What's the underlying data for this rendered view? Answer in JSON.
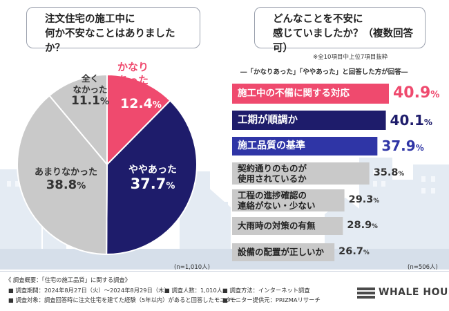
{
  "left_question": [
    "注文住宅の施工中に",
    "何か不安なことはありましたか？"
  ],
  "right_question": [
    "どんなことを不安に",
    "感じていましたか？（複数回答可）"
  ],
  "right_note": "※全10項目中上位7項目抜粋",
  "right_subtitle": "―「かなりあった」「ややあった」と回答した方が回答―",
  "colors": {
    "pink": "#ef4a6e",
    "navy": "#1e1c6b",
    "blue": "#2f35a6",
    "gray": "#c9c9c9"
  },
  "chart_data": [
    {
      "type": "pie",
      "title": "注文住宅の施工中に何か不安なことはありましたか？",
      "n_label": "(n=1,010人)",
      "slices": [
        {
          "label": "かなりあった",
          "value": 12.4,
          "display": "12.4",
          "color": "#ef4a6e"
        },
        {
          "label": "ややあった",
          "value": 37.7,
          "display": "37.7",
          "color": "#1e1c6b"
        },
        {
          "label": "あまりなかった",
          "value": 38.8,
          "display": "38.8",
          "color": "#c9c9c9"
        },
        {
          "label": "全くなかった",
          "value": 11.1,
          "display": "11.1",
          "color": "#c9c9c9"
        }
      ],
      "unit": "%"
    },
    {
      "type": "bar",
      "orientation": "horizontal",
      "title": "どんなことを不安に感じていましたか？（複数回答可）",
      "n_label": "(n=506人)",
      "unit": "%",
      "categories": [
        "施工中の不備に関する対応",
        "工期が順調か",
        "施工品質の基準",
        "契約通りのものが使用されているか",
        "工程の進捗確認の連絡がない・少ない",
        "大雨時の対策の有無",
        "設備の配置が正しいか"
      ],
      "label_lines": [
        [
          "施工中の不備に関する対応"
        ],
        [
          "工期が順調か"
        ],
        [
          "施工品質の基準"
        ],
        [
          "契約通りのものが",
          "使用されているか"
        ],
        [
          "工程の進捗確認の",
          "連絡がない・少ない"
        ],
        [
          "大雨時の対策の有無"
        ],
        [
          "設備の配置が正しいか"
        ]
      ],
      "values": [
        40.9,
        40.1,
        37.9,
        35.8,
        29.3,
        28.9,
        26.7
      ],
      "display": [
        "40.9",
        "40.1",
        "37.9",
        "35.8",
        "29.3",
        "28.9",
        "26.7"
      ],
      "colors": [
        "#ef4a6e",
        "#1e1c6b",
        "#2f35a6",
        "#c9c9c9",
        "#c9c9c9",
        "#c9c9c9",
        "#c9c9c9"
      ]
    }
  ],
  "footer": {
    "line1": "《 調査概要：「住宅の施工品質」に関する調査》",
    "period": "調査期間：2024年8月27日（火）～2024年8月29日（木）",
    "people": "調査人数：1,010人",
    "method": "調査方法：インターネット調査",
    "target": "調査対象：調査回答時に注文住宅を建てた経験（5年以内）があると回答したモニター",
    "provider": "モニター提供元：PRIZMAリサーチ"
  },
  "brand": "WHALE HOUSE"
}
